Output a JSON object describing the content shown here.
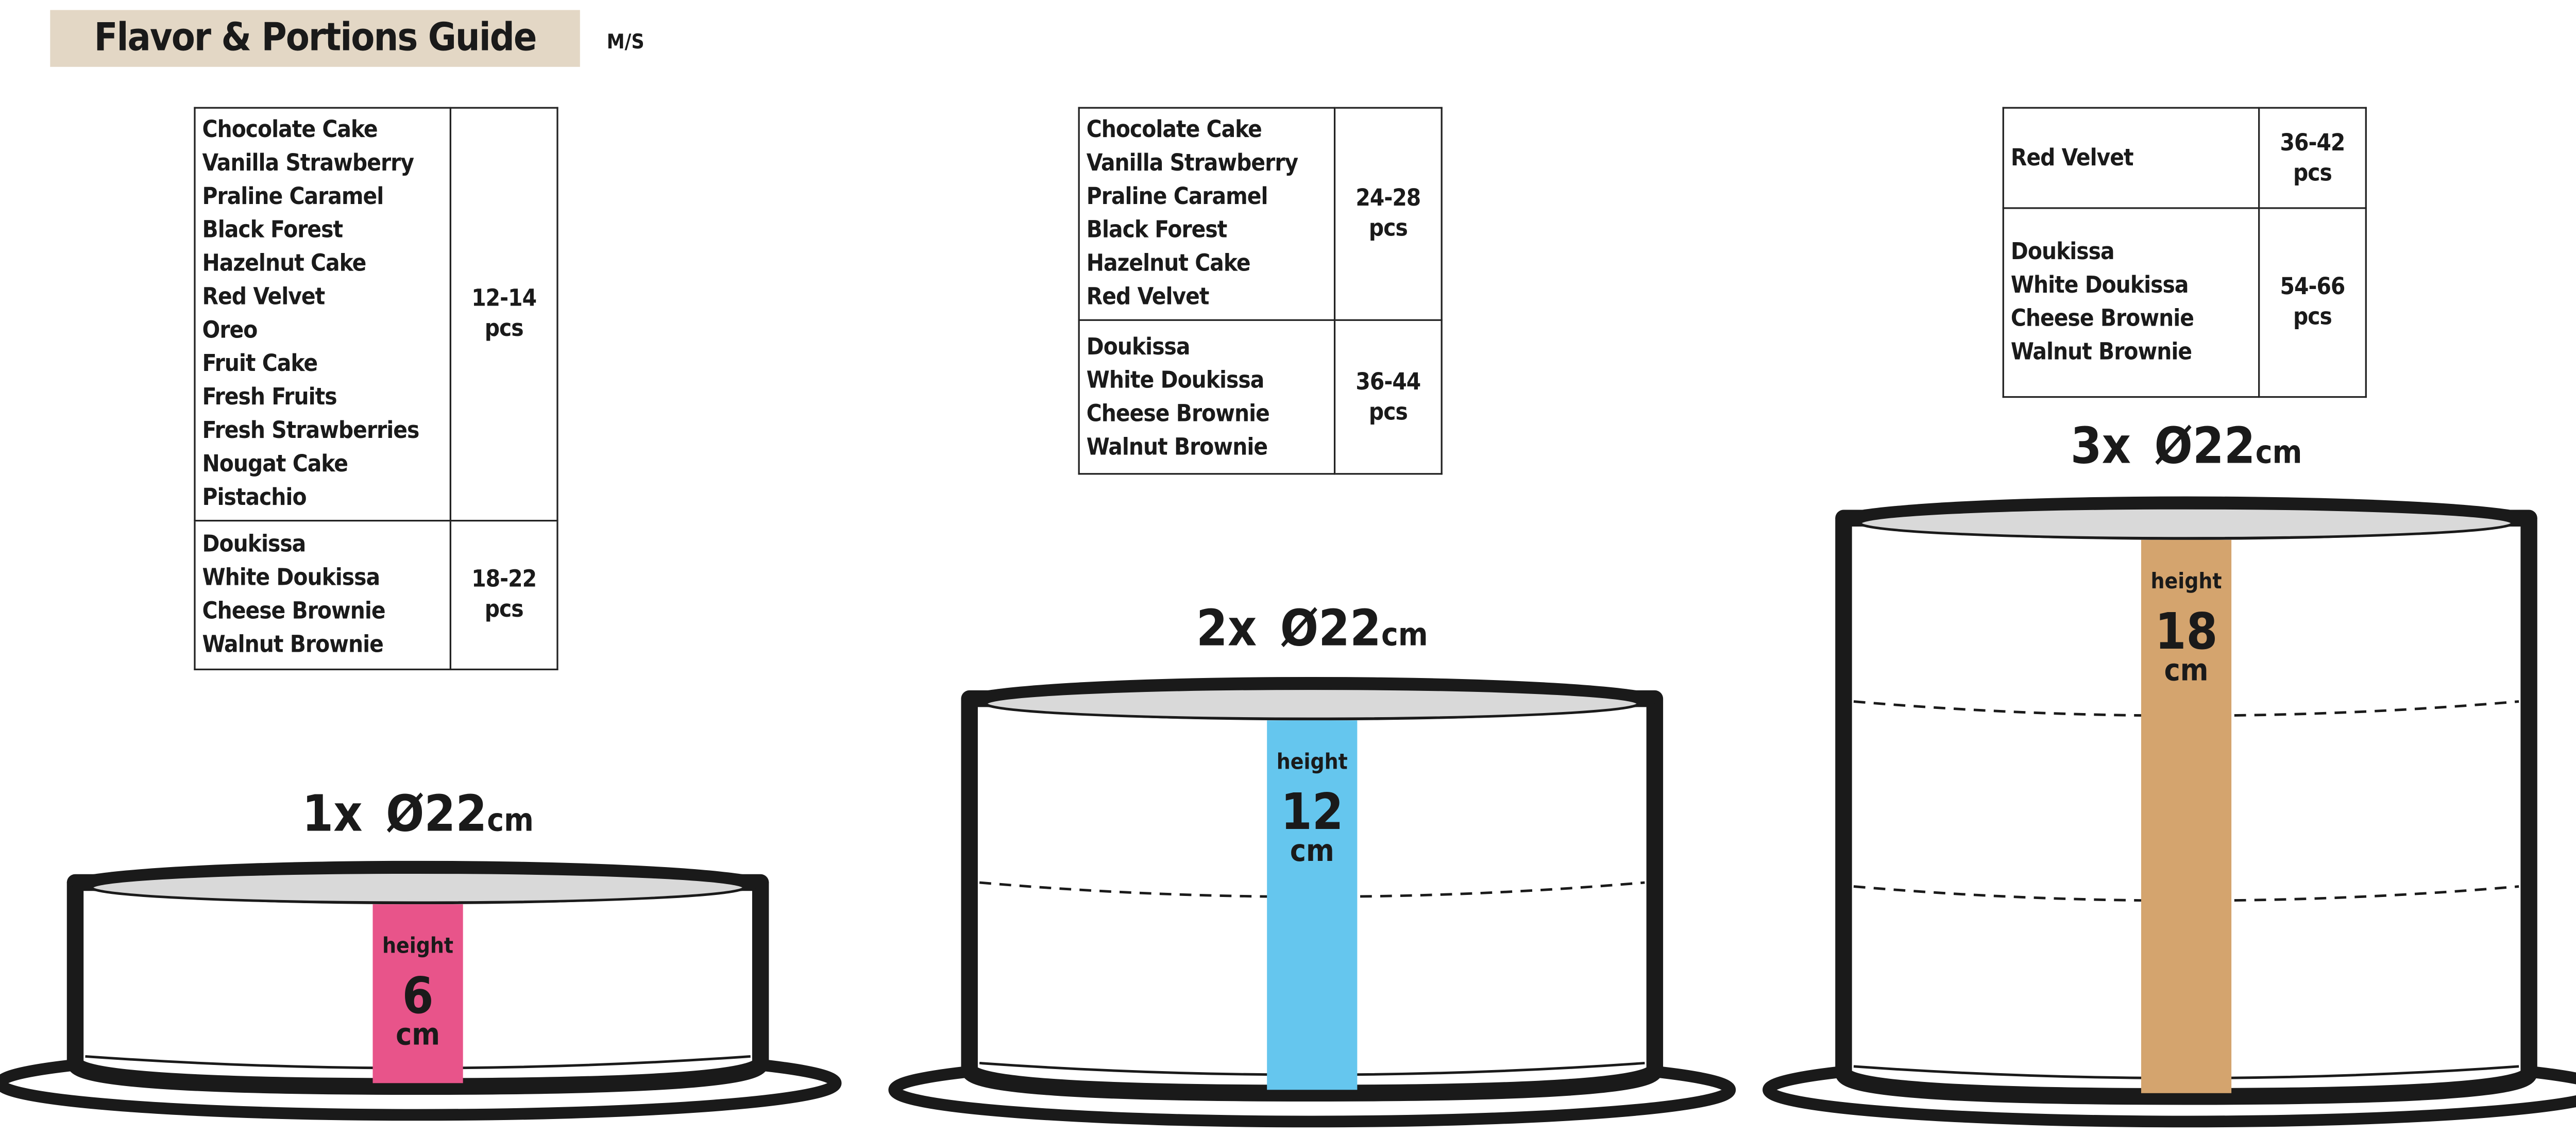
{
  "header": {
    "title": "Flavor & Portions Guide",
    "subtitle": "M/S"
  },
  "tables": [
    {
      "rows": [
        {
          "flavors": [
            "Chocolate Cake",
            "Vanilla Strawberry",
            "Praline Caramel",
            "Black Forest",
            "Hazelnut Cake",
            "Red Velvet",
            "Oreo",
            "Fruit Cake",
            "Fresh Fruits",
            "Fresh Strawberries",
            "Nougat Cake",
            "Pistachio"
          ],
          "portions": "12-14",
          "unit": "pcs"
        },
        {
          "flavors": [
            "Doukissa",
            "White Doukissa",
            "Cheese Brownie",
            "Walnut Brownie"
          ],
          "portions": "18-22",
          "unit": "pcs"
        }
      ]
    },
    {
      "rows": [
        {
          "flavors": [
            "Chocolate Cake",
            "Vanilla Strawberry",
            "Praline Caramel",
            "Black Forest",
            "Hazelnut Cake",
            "Red Velvet"
          ],
          "portions": "24-28",
          "unit": "pcs"
        },
        {
          "flavors": [
            "Doukissa",
            "White Doukissa",
            "Cheese Brownie",
            "Walnut Brownie"
          ],
          "portions": "36-44",
          "unit": "pcs"
        }
      ]
    },
    {
      "rows": [
        {
          "flavors": [
            "Red Velvet"
          ],
          "portions": "36-42",
          "unit": "pcs"
        },
        {
          "flavors": [
            "Doukissa",
            "White Doukissa",
            "Cheese Brownie",
            "Walnut Brownie"
          ],
          "portions": "54-66",
          "unit": "pcs"
        }
      ]
    }
  ],
  "cakes": [
    {
      "count": "1x",
      "diameter": "Ø22",
      "unit": "cm",
      "height_label": "height",
      "height_value": "6",
      "height_unit": "cm",
      "color": "#e8548a",
      "layers": 1
    },
    {
      "count": "2x",
      "diameter": "Ø22",
      "unit": "cm",
      "height_label": "height",
      "height_value": "12",
      "height_unit": "cm",
      "color": "#65c6ee",
      "layers": 2
    },
    {
      "count": "3x",
      "diameter": "Ø22",
      "unit": "cm",
      "height_label": "height",
      "height_value": "18",
      "height_unit": "cm",
      "color": "#d4a46e",
      "layers": 3
    }
  ]
}
